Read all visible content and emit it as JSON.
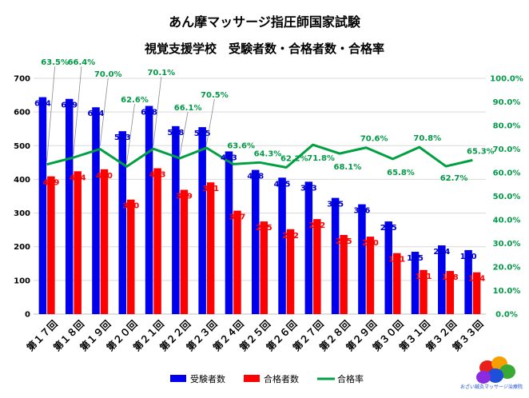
{
  "chart_data": {
    "type": "bar",
    "title": "あん摩マッサージ指圧師国家試験",
    "subtitle": "視覚支援学校　受験者数・合格者数・合格率",
    "categories": [
      "第１７回",
      "第１８回",
      "第１９回",
      "第２０回",
      "第２１回",
      "第２２回",
      "第２３回",
      "第２４回",
      "第２５回",
      "第２６回",
      "第２７回",
      "第２８回",
      "第２９回",
      "第３０回",
      "第３１回",
      "第３２回",
      "第３３回"
    ],
    "series": [
      {
        "name": "受験者数",
        "type": "bar",
        "axis": "left",
        "color": "#0000ee",
        "values": [
          644,
          639,
          614,
          543,
          618,
          558,
          555,
          483,
          428,
          405,
          393,
          345,
          326,
          275,
          185,
          204,
          190
        ]
      },
      {
        "name": "合格者数",
        "type": "bar",
        "axis": "left",
        "color": "#ff0000",
        "values": [
          409,
          424,
          430,
          340,
          433,
          369,
          391,
          307,
          275,
          252,
          282,
          235,
          230,
          181,
          131,
          128,
          124
        ]
      },
      {
        "name": "合格率",
        "type": "line",
        "axis": "right",
        "color": "#00a040",
        "values": [
          63.5,
          66.4,
          70.0,
          62.6,
          70.1,
          66.1,
          70.5,
          63.6,
          64.3,
          62.2,
          71.8,
          68.1,
          70.6,
          65.8,
          70.8,
          62.7,
          65.3
        ]
      }
    ],
    "rate_labels": [
      "63.5%",
      "66.4%",
      "70.0%",
      "62.6%",
      "70.1%",
      "66.1%",
      "70.5%",
      "63.6%",
      "64.3%",
      "62.2%",
      "71.8%",
      "68.1%",
      "70.6%",
      "65.8%",
      "70.8%",
      "62.7%",
      "65.3%"
    ],
    "ylim": [
      0,
      700
    ],
    "y2lim": [
      0,
      100
    ],
    "yticks": [
      "0",
      "100",
      "200",
      "300",
      "400",
      "500",
      "600",
      "700"
    ],
    "y2ticks": [
      "0.0%",
      "10.0%",
      "20.0%",
      "30.0%",
      "40.0%",
      "50.0%",
      "60.0%",
      "70.0%",
      "80.0%",
      "90.0%",
      "100.0%"
    ],
    "grid": true,
    "legend_position": "bottom",
    "logo_text": "おざい鍼灸マッサージ治療院"
  }
}
